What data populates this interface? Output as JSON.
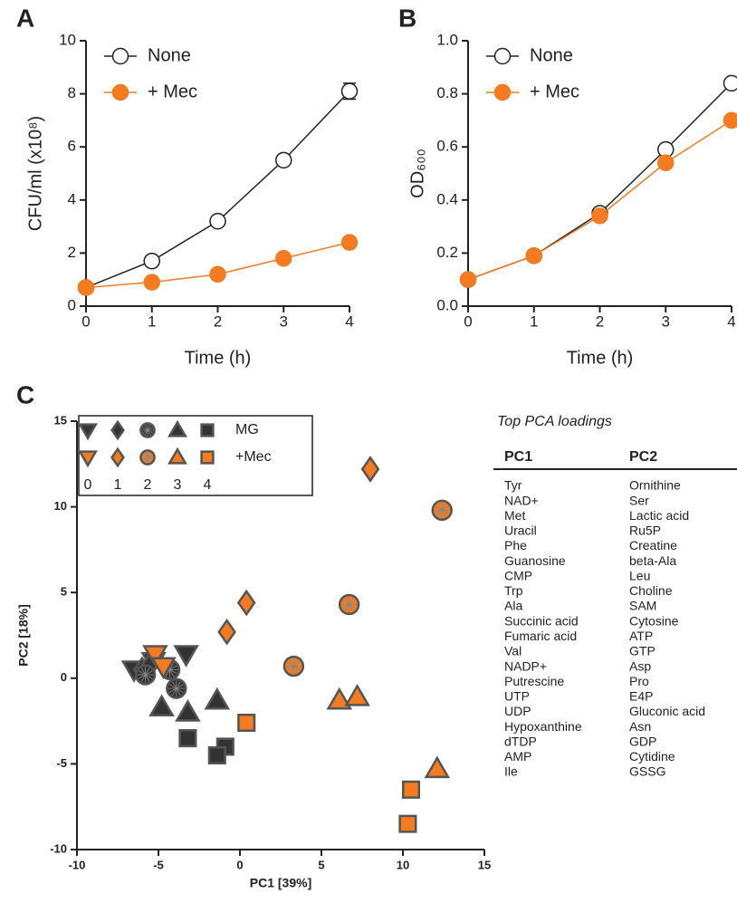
{
  "chart_data": [
    {
      "type": "line",
      "panel": "A",
      "ylabel": "CFU/ml (x10⁸)",
      "xlabel": "Time (h)",
      "x": [
        0,
        1,
        2,
        3,
        4
      ],
      "xlim": [
        0,
        4
      ],
      "xticks": [
        0,
        1,
        2,
        3,
        4
      ],
      "ylim": [
        0,
        10
      ],
      "yticks": [
        0,
        2,
        4,
        6,
        8,
        10
      ],
      "series": [
        {
          "name": "None",
          "color": "#ffffff",
          "values": [
            0.7,
            1.7,
            3.2,
            5.5,
            8.1
          ],
          "errors": [
            null,
            null,
            null,
            null,
            0.3
          ]
        },
        {
          "name": "+ Mec",
          "color": "#f47b20",
          "values": [
            0.7,
            0.9,
            1.2,
            1.8,
            2.4
          ]
        }
      ]
    },
    {
      "type": "line",
      "panel": "B",
      "ylabel": "OD₆₀₀",
      "xlabel": "Time (h)",
      "x": [
        0,
        1,
        2,
        3,
        4
      ],
      "xlim": [
        0,
        4
      ],
      "xticks": [
        0,
        1,
        2,
        3,
        4
      ],
      "ylim": [
        0,
        1
      ],
      "yticks": [
        {
          "value": 0,
          "label": "0.0"
        },
        0.2,
        0.4,
        0.6,
        0.8,
        {
          "value": 1,
          "label": "1.0"
        }
      ],
      "series": [
        {
          "name": "None",
          "color": "#ffffff",
          "values": [
            0.1,
            0.19,
            0.35,
            0.59,
            0.84
          ]
        },
        {
          "name": "+ Mec",
          "color": "#f47b20",
          "values": [
            0.1,
            0.19,
            0.34,
            0.54,
            0.7
          ]
        }
      ]
    },
    {
      "type": "scatter",
      "panel": "C",
      "xlabel": "PC1 [39%]",
      "ylabel": "PC2 [18%]",
      "xlim": [
        -10,
        15
      ],
      "xticks": [
        -10,
        -5,
        0,
        5,
        10,
        15
      ],
      "ylim": [
        -10,
        15
      ],
      "yticks": [
        -10,
        -5,
        0,
        5,
        10,
        15
      ],
      "times": [
        0,
        1,
        2,
        3,
        4
      ],
      "markers": [
        "triangle-down",
        "diamond",
        "circle",
        "triangle",
        "square"
      ],
      "series": [
        {
          "name": "MG",
          "color": "#333333",
          "x": [
            -6.5,
            -5.3,
            -3.3,
            -6,
            -5.5,
            -5.8,
            -4.3,
            -3.9,
            -4.8,
            -3.2,
            -1.4,
            -3.2,
            -0.9,
            -1.4
          ],
          "y": [
            0.5,
            1.0,
            1.4,
            0.5,
            0.8,
            0.2,
            0.5,
            -0.6,
            -1.7,
            -2.0,
            -1.3,
            -3.5,
            -4.0,
            -4.5
          ],
          "time": [
            0,
            0,
            0,
            1,
            1,
            2,
            2,
            2,
            3,
            3,
            3,
            4,
            4,
            4
          ]
        },
        {
          "name": "+Mec",
          "color": "#f47b20",
          "x": [
            -5.2,
            -4.7,
            0.4,
            -0.8,
            8.0,
            3.3,
            6.7,
            12.4,
            6.1,
            7.2,
            12.1,
            0.4,
            10.5,
            10.3
          ],
          "y": [
            1.4,
            0.7,
            4.4,
            2.7,
            12.2,
            0.7,
            4.3,
            9.8,
            -1.3,
            -1.1,
            -5.3,
            -2.6,
            -6.5,
            -8.5
          ],
          "time": [
            0,
            0,
            1,
            1,
            1,
            2,
            2,
            2,
            3,
            3,
            3,
            4,
            4,
            4
          ]
        }
      ]
    }
  ],
  "table": {
    "title": "Top PCA loadings",
    "headers": [
      "PC1",
      "PC2"
    ],
    "rows": [
      [
        "Tyr",
        "Ornithine"
      ],
      [
        "NAD+",
        "Ser"
      ],
      [
        "Met",
        "Lactic acid"
      ],
      [
        "Uracil",
        "Ru5P"
      ],
      [
        "Phe",
        "Creatine"
      ],
      [
        "Guanosine",
        "beta-Ala"
      ],
      [
        "CMP",
        "Leu"
      ],
      [
        "Trp",
        "Choline"
      ],
      [
        "Ala",
        "SAM"
      ],
      [
        "Succinic acid",
        "Cytosine"
      ],
      [
        "Fumaric acid",
        "ATP"
      ],
      [
        "Val",
        "GTP"
      ],
      [
        "NADP+",
        "Asp"
      ],
      [
        "Putrescine",
        "Pro"
      ],
      [
        "UTP",
        "E4P"
      ],
      [
        "UDP",
        "Gluconic acid"
      ],
      [
        "Hypoxanthine",
        "Asn"
      ],
      [
        "dTDP",
        "GDP"
      ],
      [
        "AMP",
        "Cytidine"
      ],
      [
        "Ile",
        "GSSG"
      ]
    ]
  }
}
